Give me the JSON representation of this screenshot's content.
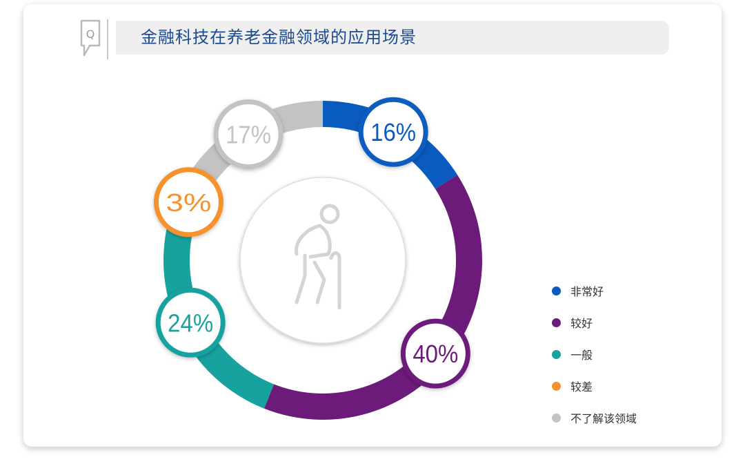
{
  "title": "金融科技在养老金融领域的应用场景",
  "header_icon": "q-speech-bubble-icon",
  "center_icon": "elderly-person-with-cane-icon",
  "chart_data": {
    "type": "pie",
    "variant": "donut",
    "title": "金融科技在养老金融领域的应用场景",
    "categories": [
      "非常好",
      "较好",
      "一般",
      "较差",
      "不了解该领域"
    ],
    "values": [
      16,
      40,
      24,
      3,
      17
    ],
    "labels": [
      "16%",
      "40%",
      "24%",
      "3%",
      "17%"
    ],
    "colors": [
      "#0a5bbf",
      "#6d1b7b",
      "#17a2a0",
      "#f5922f",
      "#c3c3c3"
    ],
    "legend_position": "right"
  }
}
